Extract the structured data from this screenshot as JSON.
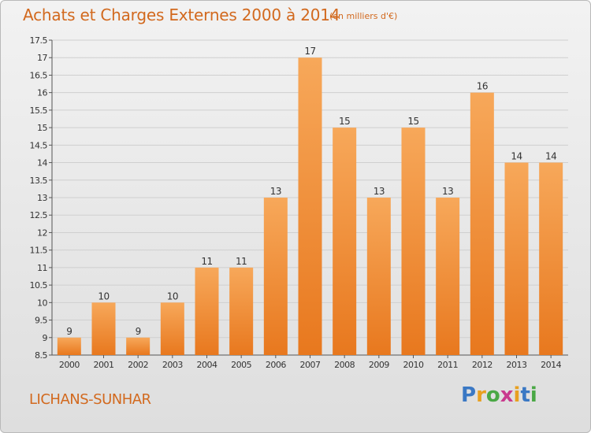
{
  "header": {
    "title": "Achats et Charges Externes 2000 à 2014",
    "subtitle": "(en milliers d'€)"
  },
  "footer": {
    "commune": "LICHANS-SUNHAR",
    "logo_text": "Proxiti"
  },
  "colors": {
    "bar_light": "#f7a85a",
    "bar_dark": "#e8781e",
    "title": "#d2691e",
    "grid": "#cfcfcf"
  },
  "chart_data": {
    "type": "bar",
    "categories": [
      "2000",
      "2001",
      "2002",
      "2003",
      "2004",
      "2005",
      "2006",
      "2007",
      "2008",
      "2009",
      "2010",
      "2011",
      "2012",
      "2013",
      "2014"
    ],
    "values": [
      9,
      10,
      9,
      10,
      11,
      11,
      13,
      17,
      15,
      13,
      15,
      13,
      16,
      14,
      14
    ],
    "data_labels": [
      "9",
      "10",
      "9",
      "10",
      "11",
      "11",
      "13",
      "17",
      "15",
      "13",
      "15",
      "13",
      "16",
      "14",
      "14"
    ],
    "ylim": [
      8.5,
      17.5
    ],
    "yticks": [
      8.5,
      9,
      9.5,
      10,
      10.5,
      11,
      11.5,
      12,
      12.5,
      13,
      13.5,
      14,
      14.5,
      15,
      15.5,
      16,
      16.5,
      17,
      17.5
    ],
    "ytick_labels": [
      "8.5",
      "9",
      "9.5",
      "10",
      "10.5",
      "11",
      "11.5",
      "12",
      "12.5",
      "13",
      "13.5",
      "14",
      "14.5",
      "15",
      "15.5",
      "16",
      "16.5",
      "17",
      "17.5"
    ],
    "grid": true,
    "legend": "none"
  }
}
